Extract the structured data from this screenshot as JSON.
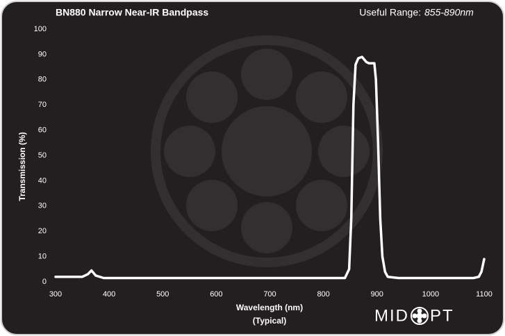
{
  "chart_data": {
    "type": "line",
    "title": "BN880 Narrow Near-IR Bandpass",
    "range_label": "Useful Range:",
    "range_value": "855-890nm",
    "xlabel": "Wavelength (nm)",
    "xlabel_note": "(Typical)",
    "ylabel": "Transmission (%)",
    "logo": {
      "left": "MID",
      "right": "PT"
    },
    "xlim": [
      300,
      1100
    ],
    "xticks": [
      300,
      400,
      500,
      600,
      700,
      800,
      900,
      1000,
      1100
    ],
    "ylim": [
      0,
      100
    ],
    "yticks": [
      0,
      10,
      20,
      30,
      40,
      50,
      60,
      70,
      80,
      90,
      100
    ],
    "grid": false,
    "series": [
      {
        "color": "#ffffff",
        "x": [
          300,
          350,
          360,
          367,
          375,
          390,
          400,
          500,
          600,
          700,
          800,
          840,
          848,
          852,
          856,
          860,
          865,
          872,
          880,
          885,
          890,
          895,
          898,
          902,
          906,
          910,
          915,
          920,
          940,
          1000,
          1080,
          1090,
          1095,
          1100
        ],
        "values": [
          2,
          2,
          3,
          4.5,
          2.5,
          1.5,
          1.5,
          1.5,
          1.5,
          1.5,
          1.5,
          1.5,
          5,
          25,
          70,
          86,
          88.5,
          89,
          87,
          86.5,
          86.5,
          86.5,
          80,
          55,
          25,
          10,
          4,
          2,
          1.5,
          1.5,
          1.5,
          2,
          4,
          9
        ]
      }
    ]
  }
}
